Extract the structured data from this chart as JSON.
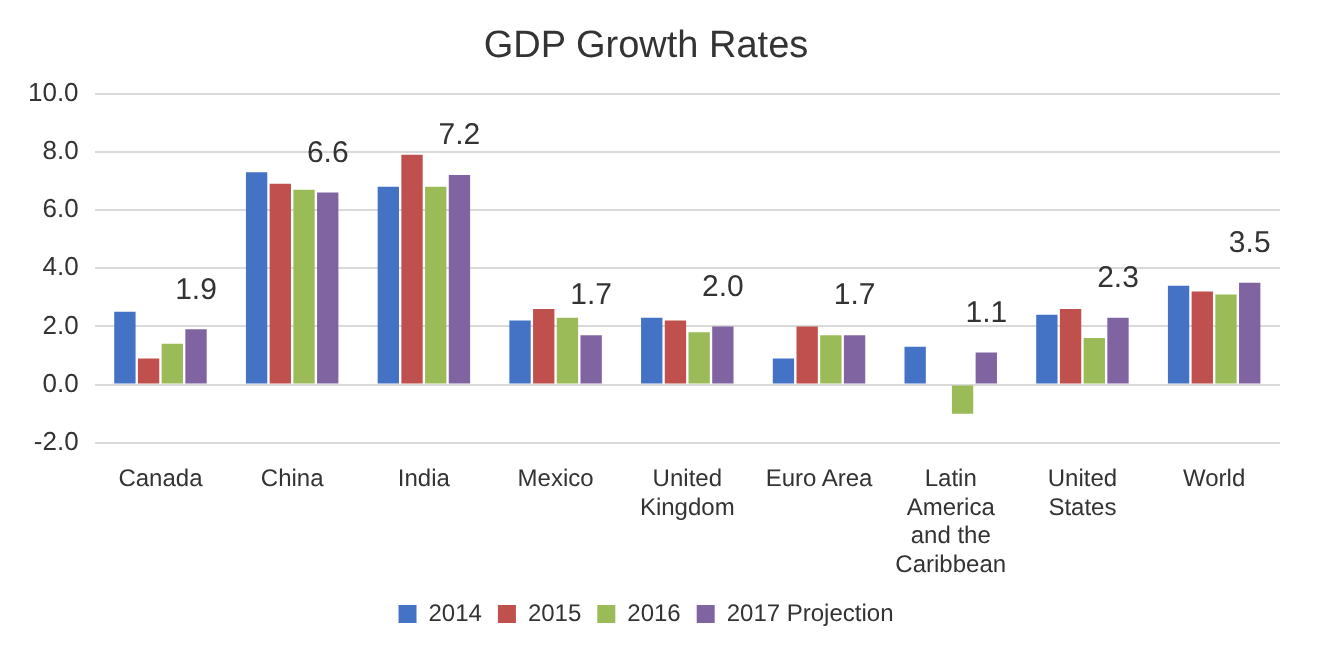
{
  "chart_data": {
    "type": "bar",
    "title": "GDP Growth Rates",
    "categories": [
      "Canada",
      "China",
      "India",
      "Mexico",
      "United Kingdom",
      "Euro Area",
      "Latin America and the Caribbean",
      "United States",
      "World"
    ],
    "series": [
      {
        "name": "2014",
        "color": "#4472c4",
        "values": [
          2.5,
          7.3,
          6.8,
          2.2,
          2.3,
          0.9,
          1.3,
          2.4,
          3.4
        ]
      },
      {
        "name": "2015",
        "color": "#c0504d",
        "values": [
          0.9,
          6.9,
          7.9,
          2.6,
          2.2,
          2.0,
          0.0,
          2.6,
          3.2
        ]
      },
      {
        "name": "2016",
        "color": "#9bbb59",
        "values": [
          1.4,
          6.7,
          6.8,
          2.3,
          1.8,
          1.7,
          -1.0,
          1.6,
          3.1
        ]
      },
      {
        "name": "2017 Projection",
        "color": "#8064a2",
        "values": [
          1.9,
          6.6,
          7.2,
          1.7,
          2.0,
          1.7,
          1.1,
          2.3,
          3.5
        ],
        "value_labels": [
          "1.9",
          "6.6",
          "7.2",
          "1.7",
          "2.0",
          "1.7",
          "1.1",
          "2.3",
          "3.5"
        ]
      }
    ],
    "ylim": [
      -2,
      10
    ],
    "yticks": [
      {
        "value": -2,
        "label": "-2.0"
      },
      {
        "value": 0,
        "label": "0.0"
      },
      {
        "value": 2,
        "label": "2.0"
      },
      {
        "value": 4,
        "label": "4.0"
      },
      {
        "value": 6,
        "label": "6.0"
      },
      {
        "value": 8,
        "label": "8.0"
      },
      {
        "value": 10,
        "label": "10.0"
      }
    ],
    "grid": "y",
    "legend": "bottom"
  }
}
